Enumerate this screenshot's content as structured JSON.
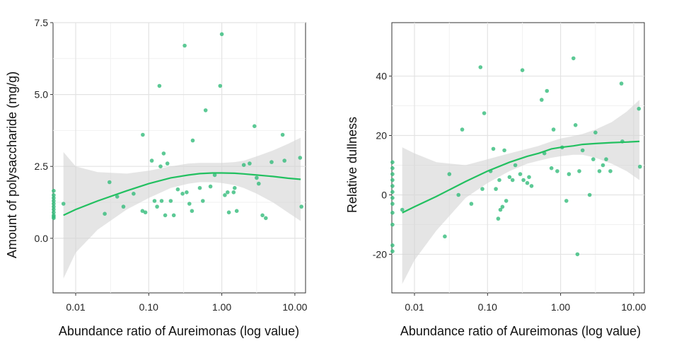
{
  "chart_data": [
    {
      "type": "scatter",
      "xscale": "log",
      "xlabel": "Abundance ratio of Aureimonas (log value)",
      "ylabel": "Amount of polysaccharide (mg/g)",
      "xlim": [
        0.0049,
        14
      ],
      "ylim": [
        -1.9,
        7.5
      ],
      "xticks": [
        {
          "value": 0.01,
          "label": "0.01"
        },
        {
          "value": 0.1,
          "label": "0.10"
        },
        {
          "value": 1,
          "label": "1.00"
        },
        {
          "value": 10,
          "label": "10.00"
        }
      ],
      "yticks": [
        {
          "value": 0,
          "label": "0.0"
        },
        {
          "value": 2.5,
          "label": "2.5"
        },
        {
          "value": 5,
          "label": "5.0"
        },
        {
          "value": 7.5,
          "label": "7.5"
        }
      ],
      "grid": true,
      "points": {
        "x": [
          0.005,
          0.005,
          0.005,
          0.005,
          0.005,
          0.005,
          0.005,
          0.005,
          0.005,
          0.005,
          0.005,
          0.0068,
          0.025,
          0.029,
          0.037,
          0.045,
          0.062,
          0.082,
          0.083,
          0.09,
          0.11,
          0.12,
          0.13,
          0.14,
          0.145,
          0.15,
          0.16,
          0.168,
          0.18,
          0.2,
          0.22,
          0.25,
          0.29,
          0.31,
          0.33,
          0.36,
          0.39,
          0.4,
          0.5,
          0.55,
          0.6,
          0.7,
          0.8,
          0.95,
          1.0,
          1.1,
          1.2,
          1.25,
          1.45,
          1.5,
          1.6,
          2.0,
          2.4,
          2.8,
          3.0,
          3.2,
          3.6,
          4.0,
          4.8,
          6.8,
          7.2,
          11.8,
          12.3
        ],
        "y": [
          1.65,
          1.5,
          1.4,
          1.3,
          1.2,
          1.1,
          1.0,
          0.9,
          0.8,
          0.75,
          0.7,
          1.2,
          0.85,
          1.95,
          1.45,
          1.1,
          1.55,
          0.95,
          3.6,
          0.9,
          2.7,
          1.3,
          1.1,
          5.3,
          2.5,
          1.3,
          2.95,
          0.8,
          2.6,
          1.3,
          0.8,
          1.7,
          1.55,
          6.7,
          1.6,
          1.2,
          0.95,
          3.4,
          1.75,
          1.3,
          4.45,
          1.8,
          2.2,
          5.3,
          7.1,
          1.5,
          1.6,
          0.9,
          1.6,
          1.75,
          0.95,
          2.55,
          2.6,
          3.9,
          2.1,
          1.9,
          0.8,
          0.7,
          2.65,
          3.6,
          2.7,
          2.8,
          1.1
        ]
      },
      "trend": {
        "x": [
          0.0068,
          0.01,
          0.02,
          0.05,
          0.1,
          0.2,
          0.35,
          0.5,
          0.75,
          1,
          1.5,
          2,
          3,
          5,
          8,
          12
        ],
        "y": [
          0.8,
          1.0,
          1.3,
          1.65,
          1.9,
          2.1,
          2.2,
          2.25,
          2.27,
          2.27,
          2.26,
          2.24,
          2.2,
          2.15,
          2.09,
          2.05
        ],
        "lower": [
          -1.4,
          -0.5,
          0.3,
          1.0,
          1.4,
          1.75,
          1.9,
          1.95,
          1.95,
          1.92,
          1.85,
          1.75,
          1.55,
          1.25,
          0.9,
          0.6
        ],
        "upper": [
          3.0,
          2.5,
          2.3,
          2.25,
          2.35,
          2.5,
          2.6,
          2.62,
          2.62,
          2.62,
          2.65,
          2.7,
          2.85,
          3.05,
          3.28,
          3.5
        ]
      },
      "colors": {
        "point": "#33bb7b",
        "line": "#22c060",
        "band": "#d4d4d4"
      }
    },
    {
      "type": "scatter",
      "xscale": "log",
      "xlabel": "Abundance ratio of Aureimonas (log value)",
      "ylabel": "Relative dullness",
      "xlim": [
        0.0049,
        14
      ],
      "ylim": [
        -33,
        58
      ],
      "xticks": [
        {
          "value": 0.01,
          "label": "0.01"
        },
        {
          "value": 0.1,
          "label": "0.10"
        },
        {
          "value": 1,
          "label": "1.00"
        },
        {
          "value": 10,
          "label": "10.00"
        }
      ],
      "yticks": [
        {
          "value": -20,
          "label": "-20"
        },
        {
          "value": 0,
          "label": "0"
        },
        {
          "value": 20,
          "label": "20"
        },
        {
          "value": 40,
          "label": "40"
        }
      ],
      "grid": true,
      "points": {
        "x": [
          0.005,
          0.005,
          0.005,
          0.005,
          0.005,
          0.005,
          0.005,
          0.005,
          0.005,
          0.005,
          0.005,
          0.005,
          0.0068,
          0.026,
          0.03,
          0.04,
          0.045,
          0.06,
          0.08,
          0.085,
          0.09,
          0.11,
          0.12,
          0.13,
          0.14,
          0.145,
          0.15,
          0.16,
          0.17,
          0.18,
          0.2,
          0.22,
          0.24,
          0.28,
          0.3,
          0.31,
          0.35,
          0.37,
          0.4,
          0.55,
          0.6,
          0.65,
          0.75,
          0.8,
          0.9,
          1.05,
          1.2,
          1.3,
          1.5,
          1.6,
          1.7,
          1.8,
          2.0,
          2.5,
          2.8,
          3.0,
          3.4,
          3.8,
          4.2,
          4.8,
          6.8,
          7.0,
          11.8,
          12.2
        ],
        "y": [
          11,
          9,
          7,
          5,
          3,
          1,
          -1,
          -3,
          -6,
          -10,
          -17,
          -19,
          -5,
          -14,
          7,
          0,
          22,
          -3,
          43,
          2,
          27.5,
          8,
          15.5,
          2,
          -8,
          5,
          -5,
          -4,
          15,
          -2,
          6,
          5,
          10,
          7,
          42,
          5,
          4,
          6,
          3,
          32,
          14,
          35,
          9,
          22,
          8,
          16,
          -2,
          7,
          46,
          23.5,
          -20,
          8,
          15,
          0,
          12,
          21,
          8,
          10,
          12,
          8,
          37.5,
          18,
          29,
          9.5
        ]
      },
      "trend": {
        "x": [
          0.0068,
          0.01,
          0.02,
          0.05,
          0.1,
          0.2,
          0.35,
          0.5,
          0.75,
          1,
          1.5,
          2,
          3,
          5,
          8,
          12
        ],
        "y": [
          -6,
          -4,
          -0.5,
          4.5,
          8,
          11,
          13,
          14,
          15.5,
          16,
          16.5,
          17,
          17.3,
          17.6,
          17.8,
          18
        ],
        "lower": [
          -30,
          -22,
          -12,
          -1,
          4,
          8,
          10.5,
          11.5,
          12.5,
          13,
          13.5,
          13.5,
          12.5,
          10.5,
          8,
          5
        ],
        "upper": [
          16,
          14,
          11,
          10,
          12,
          14,
          15.5,
          16.5,
          18,
          19,
          19.8,
          20.5,
          22,
          24.5,
          28,
          32
        ]
      },
      "colors": {
        "point": "#33bb7b",
        "line": "#22c060",
        "band": "#d4d4d4"
      }
    }
  ]
}
